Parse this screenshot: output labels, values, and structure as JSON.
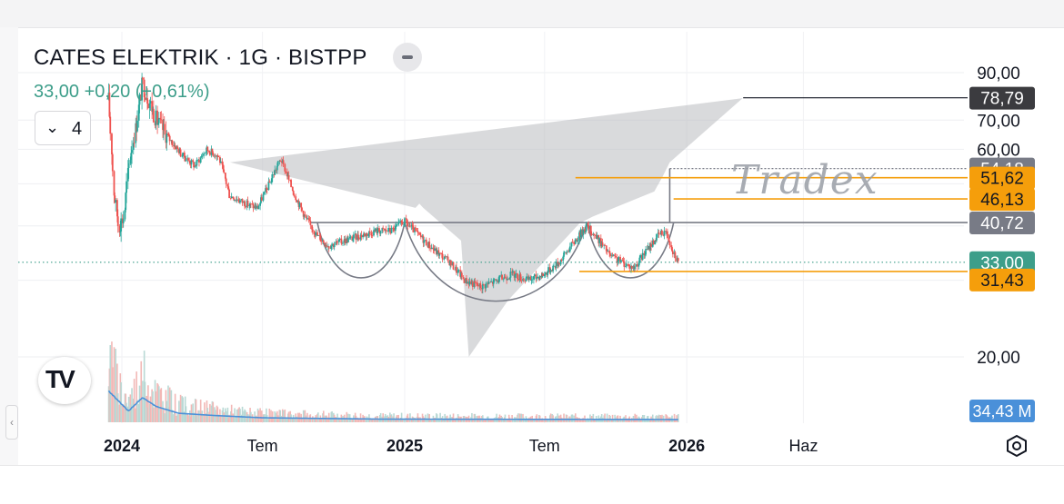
{
  "header": {
    "title": "CATES ELEKTRIK · 1G · BISTPP",
    "price_line": "33,00 +0,20 (+0,61%)"
  },
  "indicators": {
    "count": "4"
  },
  "watermark": "Tradex",
  "colors": {
    "up": "#26a69a",
    "down": "#ef5350",
    "orange": "#f59e0b",
    "gray_tag": "#787b86",
    "last_price": "#3d9e8a",
    "volume_line": "#4a90d9"
  },
  "chart_data": {
    "type": "candlestick",
    "y_scale": "log",
    "ylim": [
      17.5,
      92
    ],
    "x_ticks": [
      "2024",
      "Tem",
      "2025",
      "Tem",
      "2026",
      "Haz"
    ],
    "y_ticks": [
      "90,00",
      "70,00",
      "60,00",
      "20,00"
    ],
    "price_levels": [
      {
        "value": 78.79,
        "label": "78,79",
        "type": "dark"
      },
      {
        "value": 54.18,
        "label": "54,18",
        "type": "gray"
      },
      {
        "value": 51.62,
        "label": "51,62",
        "type": "orange"
      },
      {
        "value": 46.13,
        "label": "46,13",
        "type": "orange"
      },
      {
        "value": 40.72,
        "label": "40,72",
        "type": "gray"
      },
      {
        "value": 33.0,
        "label": "33,00",
        "type": "last"
      },
      {
        "value": 31.43,
        "label": "31,43",
        "type": "orange"
      }
    ],
    "volume_label": "34,43 M",
    "price_path": [
      [
        "2023-12-15",
        78
      ],
      [
        "2023-12-22",
        48
      ],
      [
        "2023-12-28",
        40
      ],
      [
        "2024-01-04",
        42
      ],
      [
        "2024-01-12",
        58
      ],
      [
        "2024-01-20",
        68
      ],
      [
        "2024-01-28",
        85
      ],
      [
        "2024-02-05",
        78
      ],
      [
        "2024-02-15",
        70
      ],
      [
        "2024-03-01",
        64
      ],
      [
        "2024-03-20",
        58
      ],
      [
        "2024-04-05",
        55
      ],
      [
        "2024-04-20",
        60
      ],
      [
        "2024-05-05",
        58
      ],
      [
        "2024-05-20",
        47
      ],
      [
        "2024-06-10",
        45
      ],
      [
        "2024-06-25",
        44
      ],
      [
        "2024-07-10",
        50
      ],
      [
        "2024-07-25",
        57
      ],
      [
        "2024-08-10",
        48
      ],
      [
        "2024-08-25",
        42
      ],
      [
        "2024-09-10",
        38
      ],
      [
        "2024-09-25",
        36
      ],
      [
        "2024-10-15",
        37
      ],
      [
        "2024-11-05",
        38
      ],
      [
        "2024-11-25",
        39
      ],
      [
        "2024-12-15",
        39
      ],
      [
        "2025-01-01",
        41
      ],
      [
        "2025-01-20",
        38
      ],
      [
        "2025-02-10",
        35
      ],
      [
        "2025-03-01",
        33
      ],
      [
        "2025-03-20",
        30
      ],
      [
        "2025-04-10",
        29
      ],
      [
        "2025-05-01",
        30
      ],
      [
        "2025-05-20",
        31
      ],
      [
        "2025-06-10",
        30
      ],
      [
        "2025-07-01",
        31
      ],
      [
        "2025-07-20",
        33
      ],
      [
        "2025-08-10",
        37
      ],
      [
        "2025-08-25",
        40
      ],
      [
        "2025-09-10",
        37
      ],
      [
        "2025-09-25",
        34
      ],
      [
        "2025-10-10",
        33
      ],
      [
        "2025-10-25",
        32
      ],
      [
        "2025-11-10",
        35
      ],
      [
        "2025-11-25",
        38
      ],
      [
        "2025-12-05",
        39
      ],
      [
        "2025-12-15",
        35
      ],
      [
        "2025-12-22",
        33
      ]
    ],
    "volume_profile": [
      [
        "2023-12-15",
        0.7
      ],
      [
        "2024-01-10",
        0.25
      ],
      [
        "2024-01-28",
        0.55
      ],
      [
        "2024-02-15",
        0.35
      ],
      [
        "2024-03-15",
        0.2
      ],
      [
        "2024-05-01",
        0.15
      ],
      [
        "2024-07-01",
        0.1
      ],
      [
        "2024-12-01",
        0.07
      ],
      [
        "2025-12-22",
        0.06
      ]
    ],
    "drawings": {
      "gray_polygon": [
        [
          "2024-05-20",
          56
        ],
        [
          "2025-01-15",
          44
        ],
        [
          "2025-01-20",
          45
        ],
        [
          "2025-01-25",
          44
        ],
        [
          "2025-03-15",
          37
        ],
        [
          "2025-03-25",
          20
        ],
        [
          "2025-05-15",
          27
        ],
        [
          "2025-08-15",
          40.5
        ],
        [
          "2025-09-01",
          42
        ],
        [
          "2025-11-20",
          48
        ],
        [
          "2025-12-01",
          52
        ],
        [
          "2025-12-10",
          56
        ],
        [
          "2026-03-15",
          78.8
        ],
        [
          "2026-03-17",
          79.2
        ],
        [
          "2026-03-19",
          78.8
        ]
      ],
      "cups": [
        {
          "x1": "2024-09-10",
          "x2": "2025-01-01",
          "rim": 40.7,
          "bottom": 30.5
        },
        {
          "x1": "2025-01-01",
          "x2": "2025-08-25",
          "rim": 40.7,
          "bottom": 27
        },
        {
          "x1": "2025-08-25",
          "x2": "2025-12-15",
          "rim": 40.7,
          "bottom": 30.5
        }
      ],
      "neckline": {
        "x1": "2024-09-01",
        "value": 40.72
      },
      "target_line": {
        "x1": "2026-03-15",
        "value": 78.79
      },
      "breakout_line": {
        "x": "2025-12-10",
        "from": 40.72,
        "to": 54.18
      },
      "orange_lines": [
        {
          "x1": "2025-08-10",
          "value": 51.62
        },
        {
          "x1": "2025-12-15",
          "value": 46.13
        },
        {
          "x1": "2025-08-15",
          "value": 31.43
        }
      ],
      "last_price_line": {
        "value": 33.0
      }
    }
  }
}
